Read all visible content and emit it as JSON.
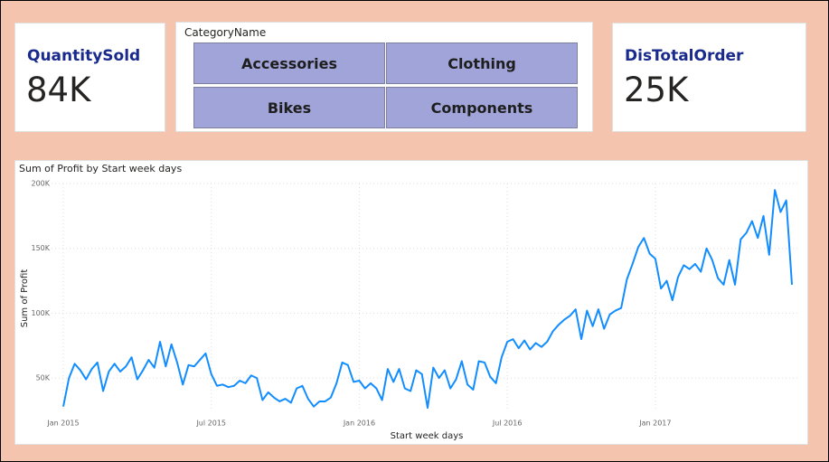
{
  "cards": [
    {
      "title": "QuantitySold",
      "value": "84K"
    },
    {
      "title": "DisTotalOrder",
      "value": "25K"
    }
  ],
  "slicer": {
    "title": "CategoryName",
    "items": [
      "Accessories",
      "Clothing",
      "Bikes",
      "Components"
    ]
  },
  "chart_data": {
    "type": "line",
    "title": "Sum of Profit by Start week days",
    "x_label": "Start week days",
    "y_label": "Sum of Profit",
    "xlim": [
      0,
      128
    ],
    "xticks": [
      {
        "value": 0,
        "label": "Jan 2015"
      },
      {
        "value": 26,
        "label": "Jul 2015"
      },
      {
        "value": 52,
        "label": "Jan 2016"
      },
      {
        "value": 78,
        "label": "Jul 2016"
      },
      {
        "value": 104,
        "label": "Jan 2017"
      }
    ],
    "ylim": [
      25000,
      200000
    ],
    "yticks": [
      {
        "value": 50000,
        "label": "50K"
      },
      {
        "value": 100000,
        "label": "100K"
      },
      {
        "value": 150000,
        "label": "150K"
      },
      {
        "value": 200000,
        "label": "200K"
      }
    ],
    "grid": true,
    "color": "#118dff",
    "values": [
      28000,
      50000,
      61000,
      56000,
      49000,
      57000,
      62000,
      40000,
      55000,
      61000,
      55000,
      59000,
      66000,
      49000,
      56000,
      64000,
      58000,
      78000,
      59000,
      76000,
      62000,
      45000,
      60000,
      59000,
      64000,
      69000,
      53000,
      44000,
      45000,
      43000,
      44000,
      48000,
      46000,
      52000,
      50000,
      33000,
      39000,
      35000,
      32000,
      34000,
      31000,
      42000,
      44000,
      34000,
      28000,
      32000,
      32000,
      35000,
      46000,
      62000,
      60000,
      47000,
      48000,
      42000,
      46000,
      42000,
      33000,
      57000,
      47000,
      57000,
      42000,
      40000,
      56000,
      53000,
      27000,
      58000,
      50000,
      56000,
      42000,
      49000,
      63000,
      45000,
      41000,
      63000,
      62000,
      51000,
      46000,
      66000,
      78000,
      80000,
      73000,
      79000,
      72000,
      77000,
      74000,
      78000,
      86000,
      91000,
      95000,
      98000,
      103000,
      80000,
      102000,
      90000,
      103000,
      88000,
      99000,
      102000,
      104000,
      126000,
      138000,
      151000,
      158000,
      146000,
      142000,
      119000,
      125000,
      110000,
      128000,
      137000,
      134000,
      138000,
      132000,
      150000,
      141000,
      127000,
      122000,
      141000,
      122000,
      157000,
      162000,
      171000,
      158000,
      175000,
      145000,
      195000,
      178000,
      187000,
      122000
    ]
  }
}
